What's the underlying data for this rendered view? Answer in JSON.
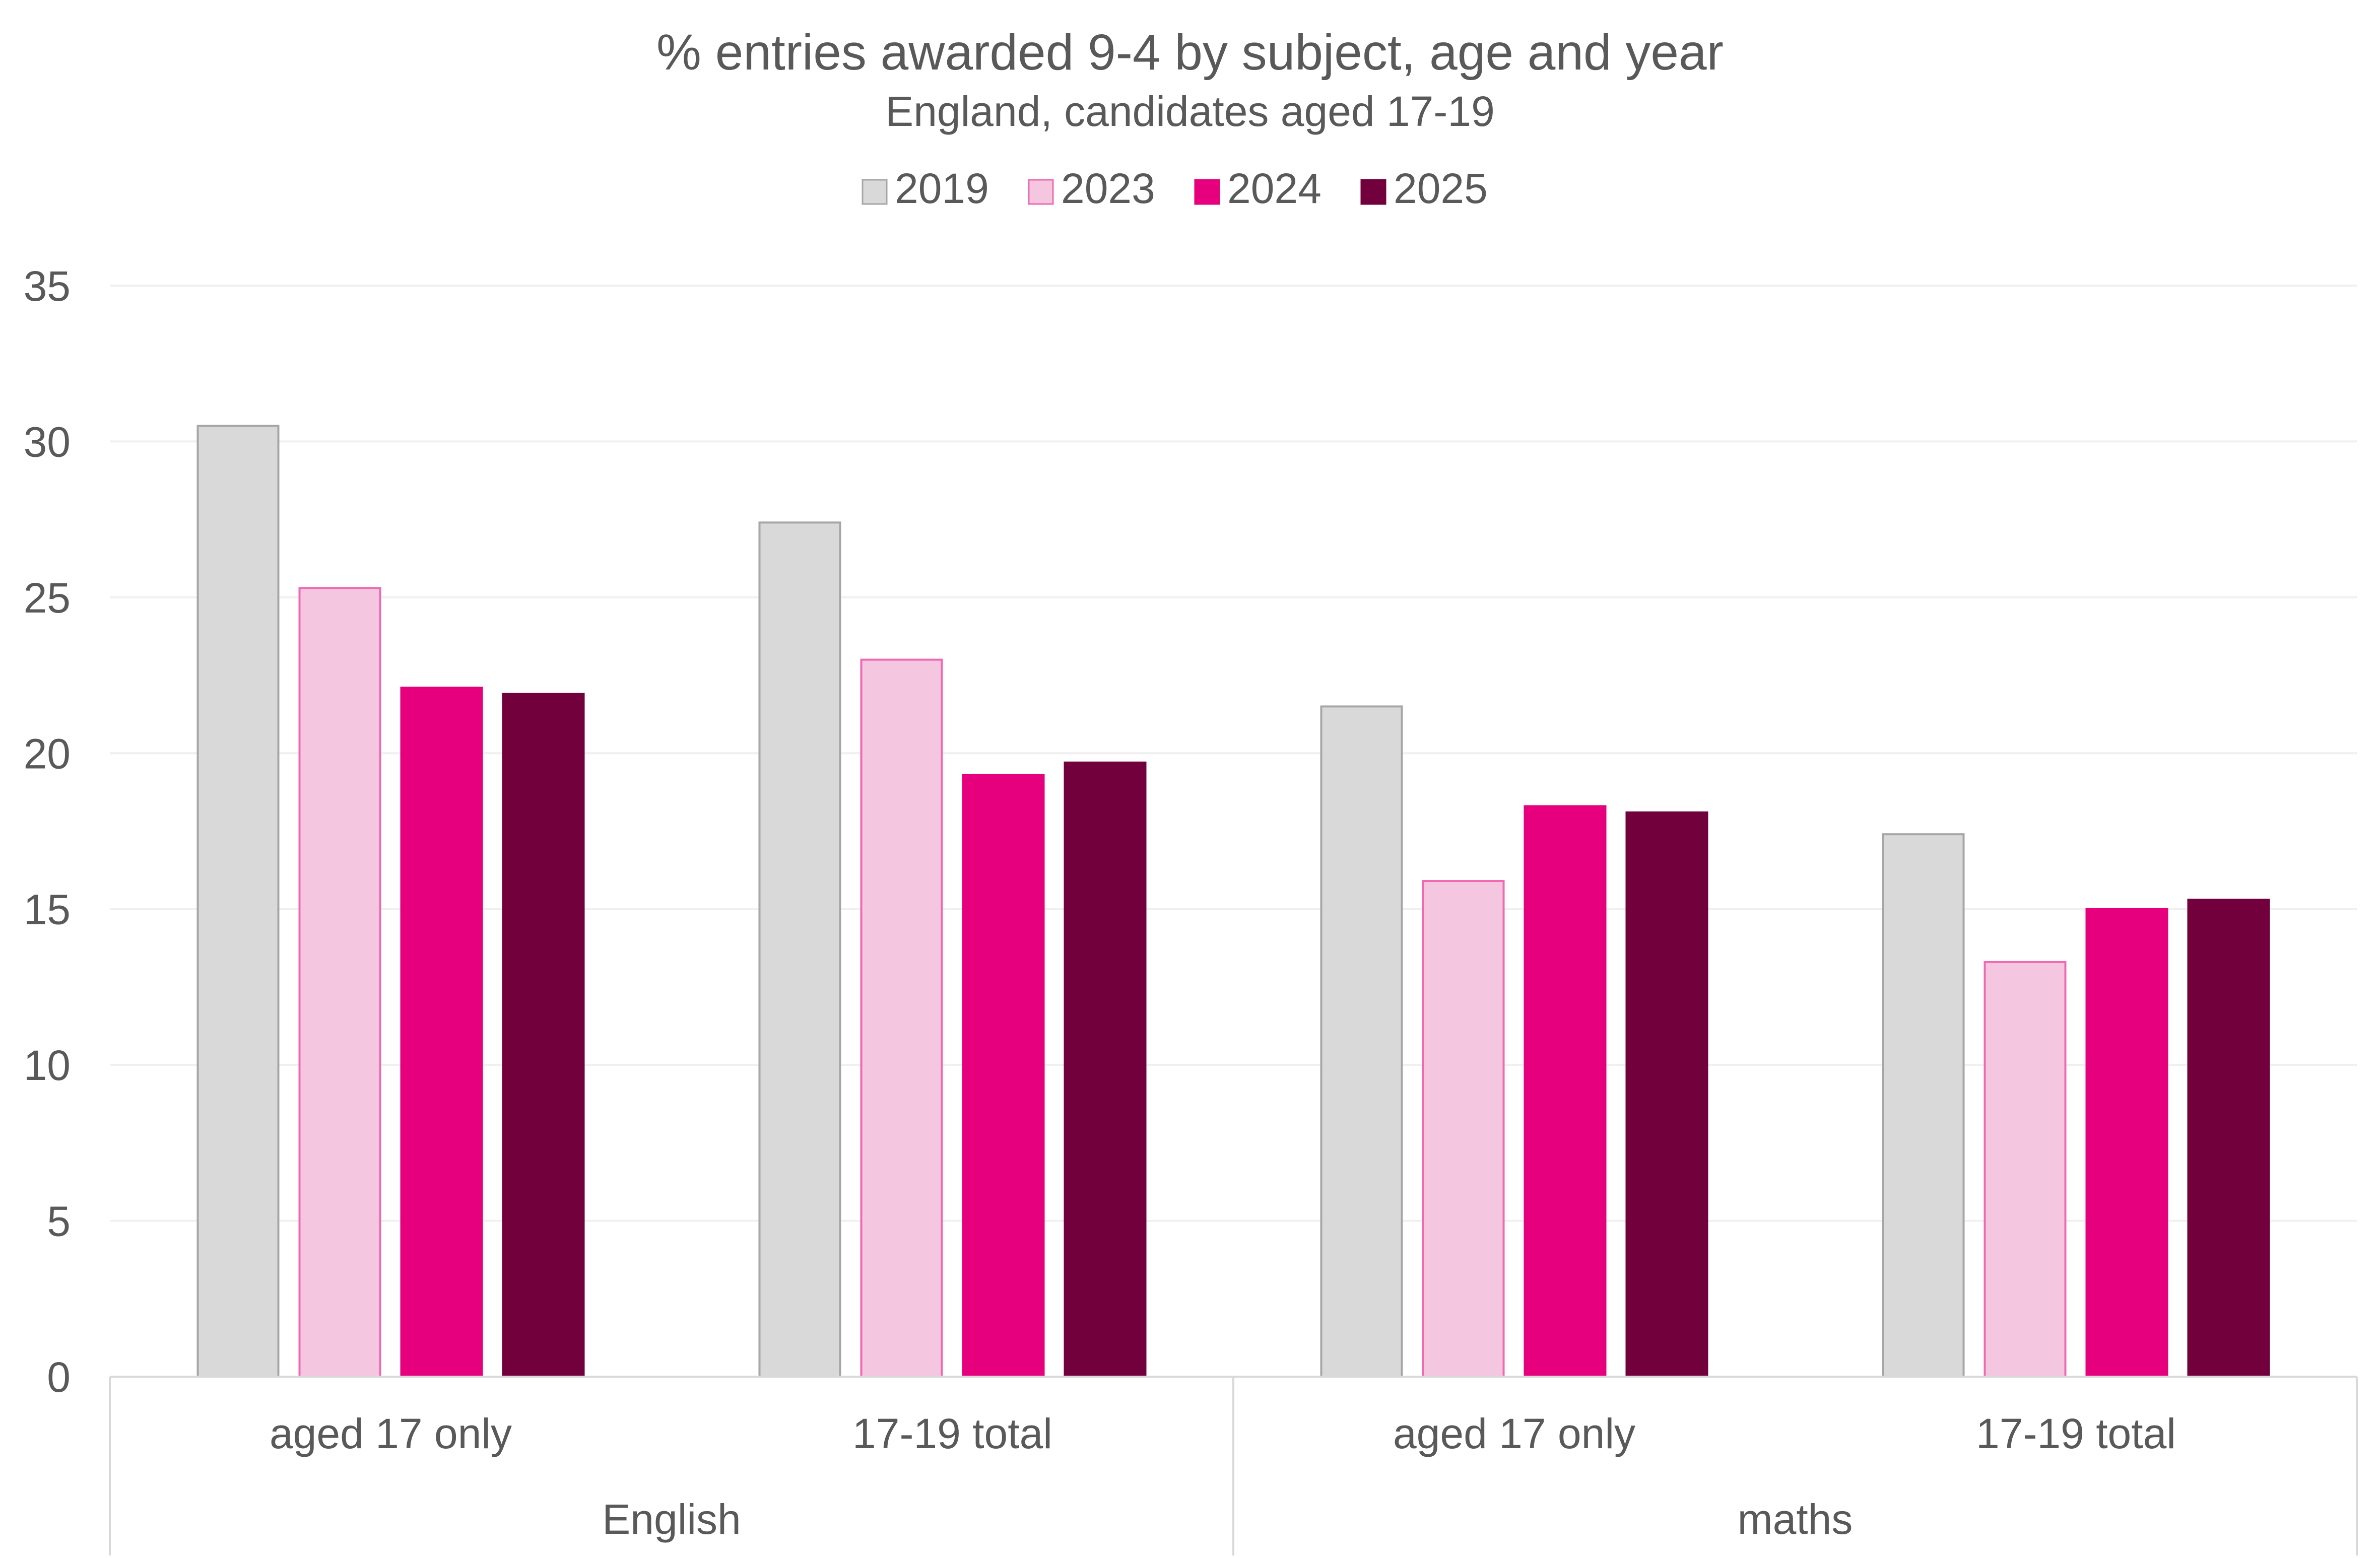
{
  "chart_data": {
    "type": "bar",
    "title": "% entries awarded 9-4 by subject, age and year",
    "subtitle": "England, candidates aged 17-19",
    "xlabel": "",
    "ylabel": "",
    "ylim": [
      0,
      35
    ],
    "y_ticks": [
      "0",
      "5",
      "10",
      "15",
      "20",
      "25",
      "30",
      "35"
    ],
    "grid": true,
    "legend_position": "top-center",
    "categories": [
      "aged 17 only",
      "17-19 total",
      "aged 17 only",
      "17-19 total"
    ],
    "groups": [
      {
        "label": "English",
        "span": 2
      },
      {
        "label": "maths",
        "span": 2
      }
    ],
    "series": [
      {
        "name": "2019",
        "color": "#d9d9d9",
        "stroke": "#a6a6a6",
        "values": [
          30.5,
          27.4,
          21.5,
          17.4
        ]
      },
      {
        "name": "2023",
        "color": "#f5c6e0",
        "stroke": "#f06ab3",
        "values": [
          25.3,
          23.0,
          15.9,
          13.3
        ]
      },
      {
        "name": "2024",
        "color": "#e6007e",
        "stroke": "#e6007e",
        "values": [
          22.1,
          19.3,
          18.3,
          15.0
        ]
      },
      {
        "name": "2025",
        "color": "#72003c",
        "stroke": "#72003c",
        "values": [
          21.9,
          19.7,
          18.1,
          15.3
        ]
      }
    ]
  },
  "colors": {
    "text": "#595959",
    "gridline": "#f0f0f0",
    "axis": "#d9d9d9"
  }
}
